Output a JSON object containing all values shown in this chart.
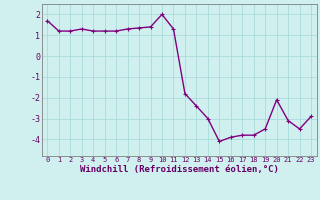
{
  "x": [
    0,
    1,
    2,
    3,
    4,
    5,
    6,
    7,
    8,
    9,
    10,
    11,
    12,
    13,
    14,
    15,
    16,
    17,
    18,
    19,
    20,
    21,
    22,
    23
  ],
  "y": [
    1.7,
    1.2,
    1.2,
    1.3,
    1.2,
    1.2,
    1.2,
    1.3,
    1.35,
    1.4,
    2.0,
    1.3,
    -1.8,
    -2.4,
    -3.0,
    -4.1,
    -3.9,
    -3.8,
    -3.8,
    -3.5,
    -2.1,
    -3.1,
    -3.5,
    -2.9
  ],
  "line_color": "#800080",
  "marker": "+",
  "marker_size": 3,
  "linewidth": 1.0,
  "xlabel": "Windchill (Refroidissement éolien,°C)",
  "xlabel_fontsize": 6.5,
  "bg_color": "#cff0ee",
  "grid_color": "#aadada",
  "ylim": [
    -4.8,
    2.5
  ],
  "xlim": [
    -0.5,
    23.5
  ],
  "yticks": [
    -4,
    -3,
    -2,
    -1,
    0,
    1,
    2
  ],
  "xticks": [
    0,
    1,
    2,
    3,
    4,
    5,
    6,
    7,
    8,
    9,
    10,
    11,
    12,
    13,
    14,
    15,
    16,
    17,
    18,
    19,
    20,
    21,
    22,
    23
  ],
  "tick_fontsize": 5.0,
  "ytick_fontsize": 6.0,
  "spine_color": "#808080",
  "text_color": "#660066"
}
